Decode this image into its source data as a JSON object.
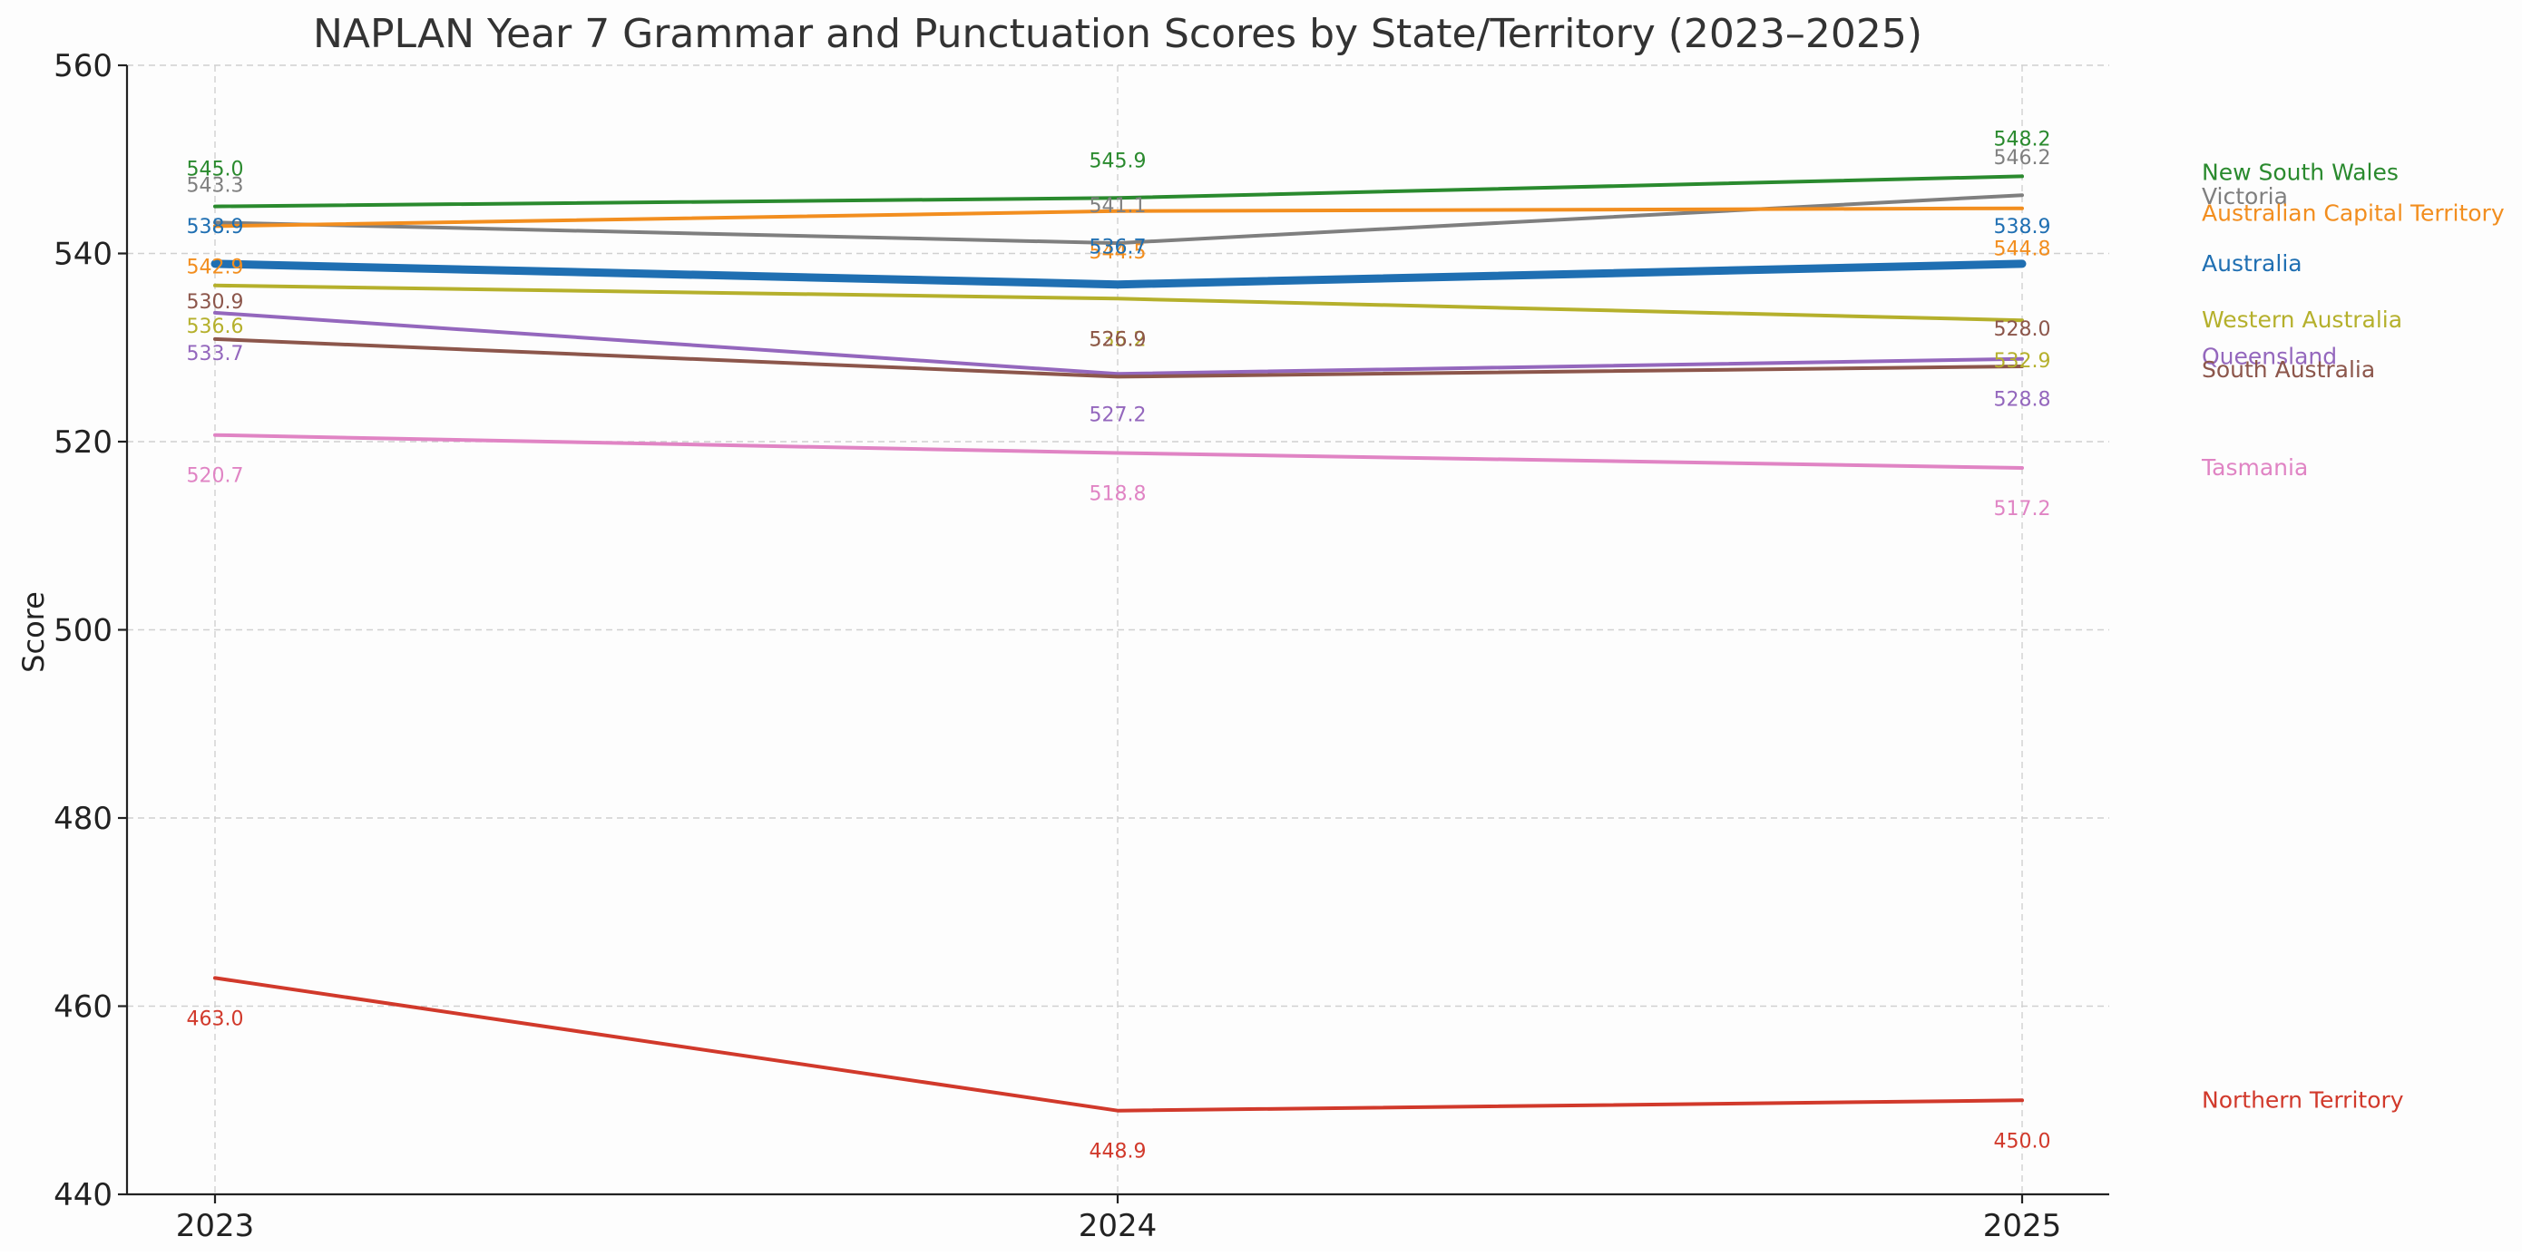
{
  "chart_data": {
    "type": "line",
    "title": "NAPLAN Year 7 Grammar and Punctuation Scores by State/Territory (2023–2025)",
    "xlabel": "",
    "ylabel": "Score",
    "x": [
      "2023",
      "2024",
      "2025"
    ],
    "ylim": [
      440,
      560
    ],
    "yticks": [
      440,
      460,
      480,
      500,
      520,
      540,
      560
    ],
    "grid": true,
    "legend": "right-side labels at line ends",
    "series": [
      {
        "name": "New South Wales",
        "values": [
          545.0,
          545.9,
          548.2
        ],
        "color": "#2a8a2e",
        "emphasis": false,
        "label_pos": [
          "above",
          "above",
          "above"
        ]
      },
      {
        "name": "Victoria",
        "values": [
          543.3,
          541.1,
          546.2
        ],
        "color": "#7f7f7f",
        "emphasis": false,
        "label_pos": [
          "above",
          "above",
          "above"
        ]
      },
      {
        "name": "Australian Capital Territory",
        "values": [
          542.9,
          544.5,
          544.8
        ],
        "color": "#f28e1f",
        "emphasis": false,
        "label_pos": [
          "below",
          "below",
          "below"
        ]
      },
      {
        "name": "Australia",
        "values": [
          538.9,
          536.7,
          538.9
        ],
        "color": "#1f6fb2",
        "emphasis": true,
        "label_pos": [
          "above",
          "above",
          "above"
        ]
      },
      {
        "name": "Western Australia",
        "values": [
          536.6,
          535.2,
          532.9
        ],
        "color": "#b5b02c",
        "emphasis": false,
        "label_pos": [
          "below",
          "below",
          "below"
        ]
      },
      {
        "name": "Queensland",
        "values": [
          533.7,
          527.2,
          528.8
        ],
        "color": "#9467bd",
        "emphasis": false,
        "label_pos": [
          "below",
          "below",
          "below"
        ]
      },
      {
        "name": "South Australia",
        "values": [
          530.9,
          526.9,
          528.0
        ],
        "color": "#8c564b",
        "emphasis": false,
        "label_pos": [
          "above",
          "above",
          "above"
        ]
      },
      {
        "name": "Tasmania",
        "values": [
          520.7,
          518.8,
          517.2
        ],
        "color": "#e084c4",
        "emphasis": false,
        "label_pos": [
          "below",
          "below",
          "below"
        ]
      },
      {
        "name": "Northern Territory",
        "values": [
          463.0,
          448.9,
          450.0
        ],
        "color": "#d1392b",
        "emphasis": false,
        "label_pos": [
          "below",
          "below",
          "below"
        ]
      }
    ]
  }
}
